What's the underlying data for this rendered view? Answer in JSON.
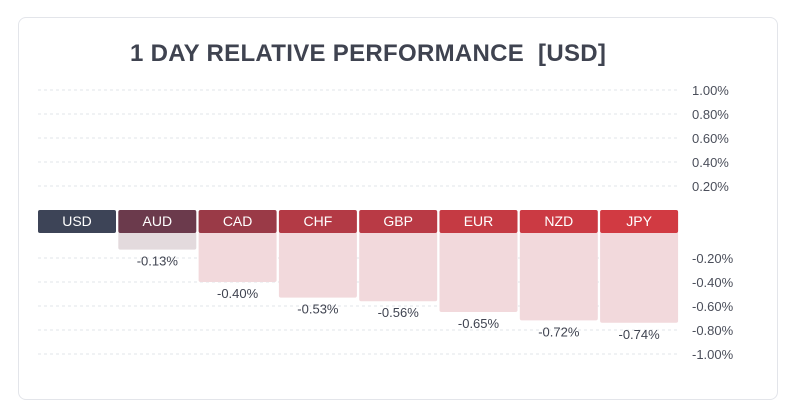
{
  "chart_data": {
    "type": "bar",
    "title": "1 DAY RELATIVE PERFORMANCE  [USD]",
    "categories": [
      "USD",
      "AUD",
      "CAD",
      "CHF",
      "GBP",
      "EUR",
      "NZD",
      "JPY"
    ],
    "values": [
      0,
      -0.13,
      -0.4,
      -0.53,
      -0.56,
      -0.65,
      -0.72,
      -0.74
    ],
    "value_labels": [
      "",
      "-0.13%",
      "-0.40%",
      "-0.53%",
      "-0.56%",
      "-0.65%",
      "-0.72%",
      "-0.74%"
    ],
    "header_colors": [
      "#3d4457",
      "#6b3a4c",
      "#9a3a47",
      "#b33a45",
      "#b93a45",
      "#c53a43",
      "#cb3a43",
      "#d13a42"
    ],
    "fill_colors": [
      "#ffffff",
      "#e3dadd",
      "#f2d9dc",
      "#f2d9dc",
      "#f2d9dc",
      "#f2d9dc",
      "#f2d9dc",
      "#f2d9dc"
    ],
    "ylim": [
      -1.0,
      1.0
    ],
    "yticks_pos": [
      "1.00%",
      "0.80%",
      "0.60%",
      "0.40%",
      "0.20%"
    ],
    "yticks_pos_values": [
      1.0,
      0.8,
      0.6,
      0.4,
      0.2
    ],
    "yticks_neg": [
      "-0.20%",
      "-0.40%",
      "-0.60%",
      "-0.80%",
      "-1.00%"
    ],
    "yticks_neg_values": [
      -0.2,
      -0.4,
      -0.6,
      -0.8,
      -1.0
    ],
    "grid": true,
    "xlabel": "",
    "ylabel": ""
  }
}
